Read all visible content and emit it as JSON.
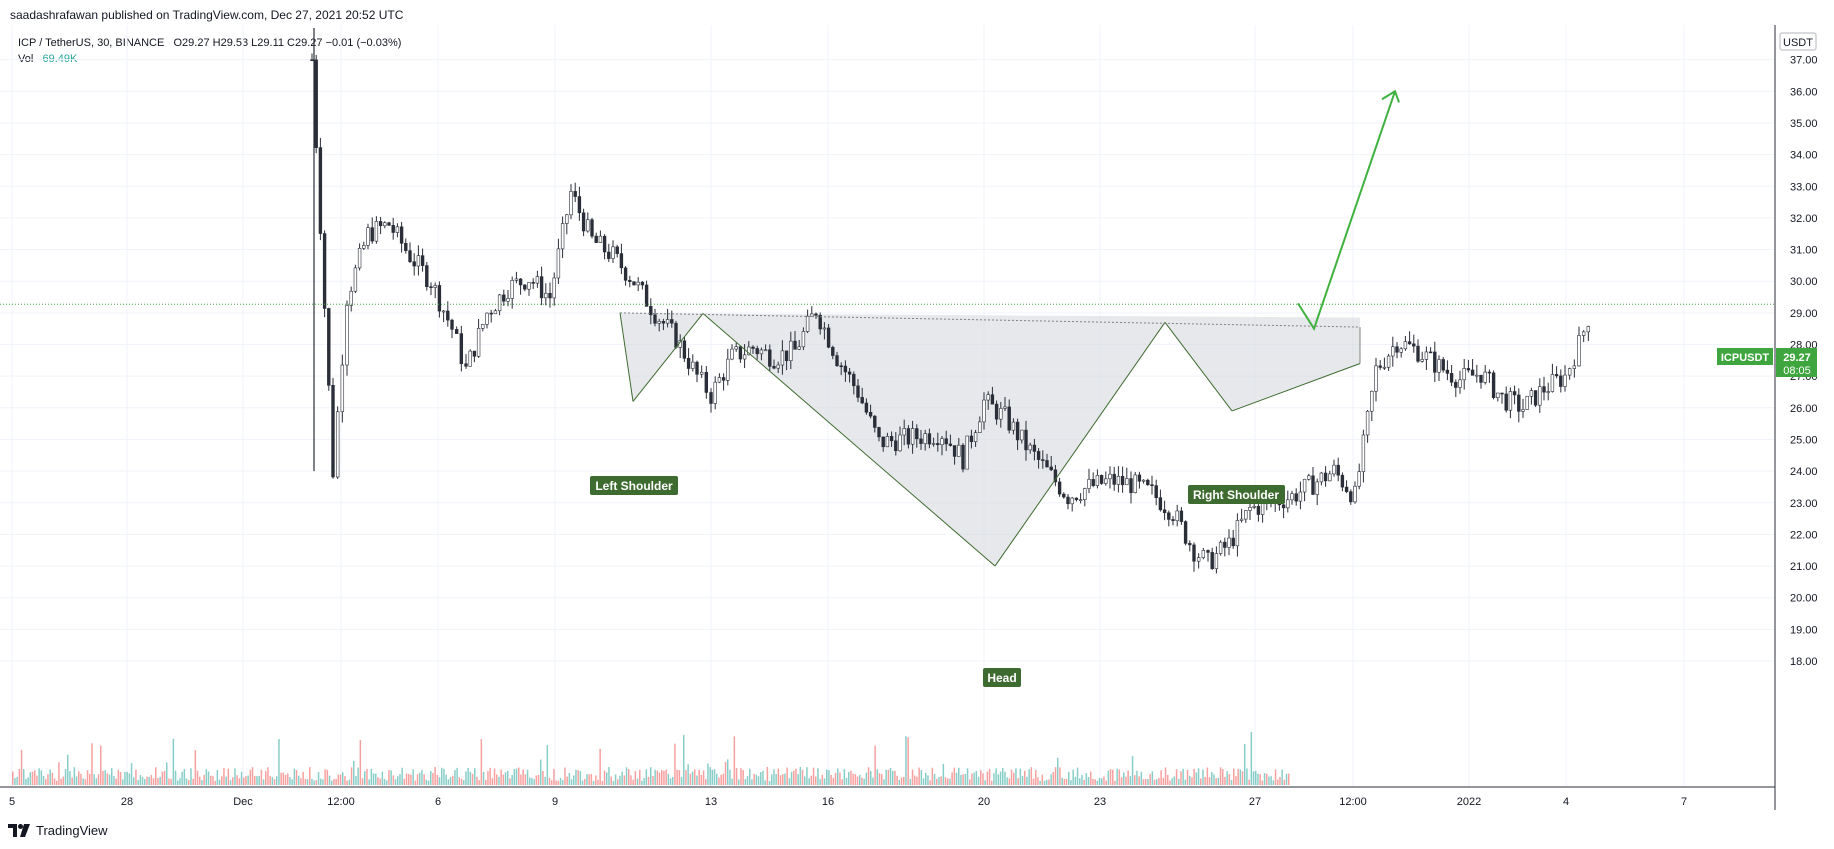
{
  "publish_line": "saadashrafawan published on TradingView.com, Dec 27, 2021 20:52 UTC",
  "legend": {
    "symbol": "ICP / TetherUS, 30, BINANCE",
    "ohlc": "O29.27 H29.53 L29.11 C29.27 −0.01 (−0.03%)",
    "vol_label": "Vol",
    "vol_value": "69.49K"
  },
  "price_axis": {
    "currency_button": "USDT",
    "ticks": [
      "37.00",
      "36.00",
      "35.00",
      "34.00",
      "33.00",
      "32.00",
      "31.00",
      "30.00",
      "29.00",
      "28.00",
      "27.00",
      "26.00",
      "25.00",
      "24.00",
      "23.00",
      "22.00",
      "21.00",
      "20.00",
      "19.00",
      "18.00"
    ],
    "symbol_tag": "ICPUSDT",
    "last_price": "29.27",
    "countdown": "08:05"
  },
  "time_axis": {
    "ticks": [
      "5",
      "28",
      "Dec",
      "12:00",
      "6",
      "9",
      "13",
      "16",
      "20",
      "23",
      "27",
      "12:00",
      "2022",
      "4",
      "7"
    ]
  },
  "annotations": {
    "left_shoulder": "Left Shoulder",
    "head": "Head",
    "right_shoulder": "Right Shoulder"
  },
  "footer": {
    "brand": "TradingView"
  },
  "colors": {
    "up": "#26a69a",
    "down": "#ef5350",
    "candle_body": "#4a4a4a",
    "label_bg": "#3e6b2f",
    "arrow": "#3fb13f",
    "price_tag": "#3fa63f"
  },
  "chart_data": {
    "type": "candlestick",
    "pair": "ICP / TetherUS",
    "interval": "30",
    "exchange": "BINANCE",
    "ylim": [
      17.7,
      38.0
    ],
    "last_close": 29.27,
    "price_path": [
      [
        0,
        37.0
      ],
      [
        3,
        24.0
      ],
      [
        5,
        29.5
      ],
      [
        8,
        31.5
      ],
      [
        11,
        31.8
      ],
      [
        14,
        30.8
      ],
      [
        17,
        30.0
      ],
      [
        20,
        28.5
      ],
      [
        22,
        27.2
      ],
      [
        25,
        29.0
      ],
      [
        28,
        29.8
      ],
      [
        31,
        30.1
      ],
      [
        34,
        29.5
      ],
      [
        37,
        32.8
      ],
      [
        40,
        31.3
      ],
      [
        43,
        30.8
      ],
      [
        46,
        30.0
      ],
      [
        49,
        29.0
      ],
      [
        52,
        28.2
      ],
      [
        55,
        27.0
      ],
      [
        57,
        26.4
      ],
      [
        60,
        27.6
      ],
      [
        63,
        27.9
      ],
      [
        66,
        27.6
      ],
      [
        69,
        27.8
      ],
      [
        72,
        29.1
      ],
      [
        75,
        27.6
      ],
      [
        78,
        26.5
      ],
      [
        81,
        24.9
      ],
      [
        84,
        25.0
      ],
      [
        87,
        25.1
      ],
      [
        90,
        25.2
      ],
      [
        93,
        24.4
      ],
      [
        96,
        26.2
      ],
      [
        99,
        25.7
      ],
      [
        102,
        24.8
      ],
      [
        105,
        24.0
      ],
      [
        108,
        23.2
      ],
      [
        111,
        23.5
      ],
      [
        114,
        23.7
      ],
      [
        117,
        23.6
      ],
      [
        120,
        23.3
      ],
      [
        123,
        22.7
      ],
      [
        126,
        21.5
      ],
      [
        128,
        21.1
      ],
      [
        131,
        21.7
      ],
      [
        134,
        22.8
      ],
      [
        137,
        23.0
      ],
      [
        140,
        23.2
      ],
      [
        143,
        23.6
      ],
      [
        146,
        24.0
      ],
      [
        149,
        23.2
      ],
      [
        152,
        27.2
      ],
      [
        155,
        28.1
      ],
      [
        158,
        27.8
      ],
      [
        161,
        27.3
      ],
      [
        164,
        26.9
      ],
      [
        167,
        27.1
      ],
      [
        170,
        26.3
      ],
      [
        173,
        26.0
      ],
      [
        176,
        26.6
      ],
      [
        179,
        27.0
      ],
      [
        181,
        28.0
      ],
      [
        183,
        29.27
      ]
    ],
    "pattern_levels": {
      "left_shoulder_low": 26.2,
      "head_low": 21.0,
      "right_shoulder_low": 25.9,
      "neckline_left": 29.0,
      "neckline_right": 28.6,
      "target": 36.0
    }
  }
}
